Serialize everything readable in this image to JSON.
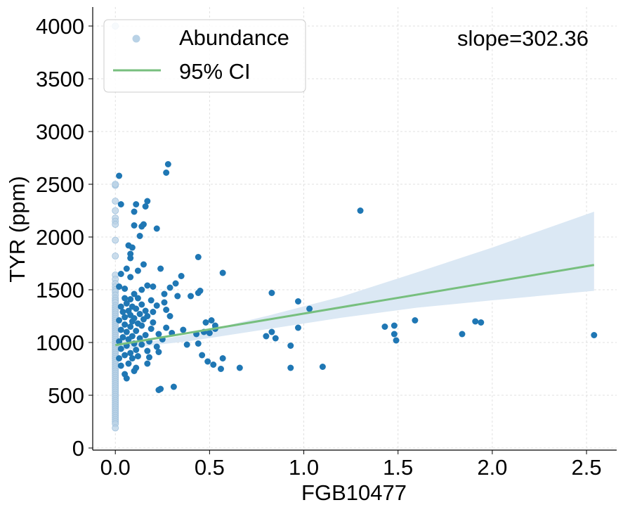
{
  "chart_data": {
    "type": "scatter",
    "xlabel": "FGB10477",
    "ylabel": "TYR (ppm)",
    "xlim": [
      -0.12,
      2.66
    ],
    "ylim": [
      -20,
      4180
    ],
    "x_ticks": [
      0.0,
      0.5,
      1.0,
      1.5,
      2.0,
      2.5
    ],
    "x_tick_labels": [
      "0.0",
      "0.5",
      "1.0",
      "1.5",
      "2.0",
      "2.5"
    ],
    "y_ticks": [
      0,
      500,
      1000,
      1500,
      2000,
      2500,
      3000,
      3500,
      4000
    ],
    "y_tick_labels": [
      "0",
      "500",
      "1000",
      "1500",
      "2000",
      "2500",
      "3000",
      "3500",
      "4000"
    ],
    "grid": true,
    "legend": {
      "position": "top-left",
      "entries": [
        {
          "label": "Abundance",
          "marker": "circle",
          "color": "#1f77b4"
        },
        {
          "label": "95% CI",
          "marker": "line",
          "color": "#77bf7e"
        }
      ]
    },
    "annotation": "slope=302.36",
    "colors": {
      "points": "#1f77b4",
      "points_zero": "#b9d2e6",
      "fit_line": "#77bf7e",
      "ci_band": "#dbe8f4"
    },
    "fit_line": {
      "x": [
        0.0,
        2.54
      ],
      "y": [
        975,
        1735
      ]
    },
    "ci_band": {
      "x": [
        0.0,
        0.1,
        0.2,
        0.4,
        0.8,
        1.2,
        1.6,
        2.0,
        2.54
      ],
      "lower": [
        910,
        945,
        975,
        1015,
        1125,
        1235,
        1330,
        1400,
        1490
      ],
      "upper": [
        1040,
        1020,
        1015,
        1080,
        1250,
        1435,
        1665,
        1900,
        2240
      ]
    },
    "zero_points": [
      4000,
      2490,
      2500,
      2340,
      2250,
      2180,
      2150,
      2120,
      1970,
      1820,
      1640,
      1600,
      1560,
      1530,
      1500,
      1480,
      1450,
      1420,
      1400,
      1380,
      1350,
      1330,
      1310,
      1290,
      1270,
      1250,
      1230,
      1210,
      1190,
      1170,
      1150,
      1130,
      1110,
      1090,
      1070,
      1050,
      1030,
      1010,
      990,
      970,
      950,
      930,
      910,
      890,
      870,
      850,
      830,
      810,
      790,
      770,
      750,
      730,
      710,
      690,
      670,
      650,
      630,
      610,
      590,
      570,
      550,
      530,
      510,
      490,
      470,
      450,
      430,
      410,
      390,
      370,
      350,
      330,
      310,
      290,
      270,
      250,
      230,
      190
    ],
    "points": [
      {
        "x": 0.02,
        "y": 2580
      },
      {
        "x": 0.03,
        "y": 2310
      },
      {
        "x": 0.28,
        "y": 2690
      },
      {
        "x": 0.27,
        "y": 2610
      },
      {
        "x": 0.17,
        "y": 2340
      },
      {
        "x": 0.11,
        "y": 2310
      },
      {
        "x": 0.16,
        "y": 2290
      },
      {
        "x": 0.1,
        "y": 2240
      },
      {
        "x": 0.1,
        "y": 2110
      },
      {
        "x": 0.14,
        "y": 2100
      },
      {
        "x": 0.15,
        "y": 2120
      },
      {
        "x": 0.22,
        "y": 2080
      },
      {
        "x": 0.13,
        "y": 2010
      },
      {
        "x": 0.07,
        "y": 1920
      },
      {
        "x": 0.09,
        "y": 1900
      },
      {
        "x": 0.08,
        "y": 1840
      },
      {
        "x": 0.08,
        "y": 1800
      },
      {
        "x": 0.44,
        "y": 1810
      },
      {
        "x": 0.15,
        "y": 1740
      },
      {
        "x": 0.06,
        "y": 1700
      },
      {
        "x": 0.12,
        "y": 1680
      },
      {
        "x": 0.24,
        "y": 1700
      },
      {
        "x": 0.57,
        "y": 1660
      },
      {
        "x": 0.35,
        "y": 1630
      },
      {
        "x": 0.03,
        "y": 1650
      },
      {
        "x": 0.08,
        "y": 1620
      },
      {
        "x": 0.32,
        "y": 1560
      },
      {
        "x": 0.29,
        "y": 1520
      },
      {
        "x": 0.2,
        "y": 1530
      },
      {
        "x": 0.17,
        "y": 1540
      },
      {
        "x": 0.45,
        "y": 1490
      },
      {
        "x": 0.44,
        "y": 1470
      },
      {
        "x": 0.4,
        "y": 1440
      },
      {
        "x": 0.33,
        "y": 1440
      },
      {
        "x": 0.26,
        "y": 1460
      },
      {
        "x": 0.14,
        "y": 1500
      },
      {
        "x": 0.05,
        "y": 1510
      },
      {
        "x": 0.02,
        "y": 1530
      },
      {
        "x": 0.1,
        "y": 1460
      },
      {
        "x": 0.12,
        "y": 1420
      },
      {
        "x": 0.05,
        "y": 1420
      },
      {
        "x": 0.08,
        "y": 1410
      },
      {
        "x": 0.19,
        "y": 1400
      },
      {
        "x": 0.26,
        "y": 1380
      },
      {
        "x": 0.06,
        "y": 1370
      },
      {
        "x": 0.03,
        "y": 1340
      },
      {
        "x": 0.09,
        "y": 1340
      },
      {
        "x": 0.14,
        "y": 1360
      },
      {
        "x": 0.22,
        "y": 1350
      },
      {
        "x": 0.11,
        "y": 1320
      },
      {
        "x": 0.16,
        "y": 1300
      },
      {
        "x": 0.07,
        "y": 1300
      },
      {
        "x": 0.04,
        "y": 1290
      },
      {
        "x": 0.2,
        "y": 1290
      },
      {
        "x": 0.27,
        "y": 1310
      },
      {
        "x": 0.13,
        "y": 1270
      },
      {
        "x": 0.08,
        "y": 1260
      },
      {
        "x": 0.17,
        "y": 1250
      },
      {
        "x": 0.29,
        "y": 1250
      },
      {
        "x": 0.05,
        "y": 1240
      },
      {
        "x": 0.1,
        "y": 1230
      },
      {
        "x": 0.15,
        "y": 1220
      },
      {
        "x": 0.02,
        "y": 1210
      },
      {
        "x": 0.09,
        "y": 1200
      },
      {
        "x": 0.2,
        "y": 1190
      },
      {
        "x": 0.12,
        "y": 1180
      },
      {
        "x": 0.05,
        "y": 1170
      },
      {
        "x": 0.14,
        "y": 1160
      },
      {
        "x": 0.08,
        "y": 1150
      },
      {
        "x": 0.27,
        "y": 1140
      },
      {
        "x": 0.36,
        "y": 1120
      },
      {
        "x": 0.19,
        "y": 1130
      },
      {
        "x": 0.03,
        "y": 1120
      },
      {
        "x": 0.11,
        "y": 1110
      },
      {
        "x": 0.06,
        "y": 1100
      },
      {
        "x": 0.3,
        "y": 1090
      },
      {
        "x": 0.23,
        "y": 1080
      },
      {
        "x": 0.16,
        "y": 1070
      },
      {
        "x": 0.43,
        "y": 1080
      },
      {
        "x": 0.47,
        "y": 1100
      },
      {
        "x": 0.5,
        "y": 1090
      },
      {
        "x": 0.53,
        "y": 1130
      },
      {
        "x": 0.53,
        "y": 1160
      },
      {
        "x": 0.51,
        "y": 1210
      },
      {
        "x": 0.48,
        "y": 1190
      },
      {
        "x": 0.09,
        "y": 1060
      },
      {
        "x": 0.04,
        "y": 1050
      },
      {
        "x": 0.13,
        "y": 1040
      },
      {
        "x": 0.07,
        "y": 1030
      },
      {
        "x": 0.25,
        "y": 1030
      },
      {
        "x": 0.18,
        "y": 1010
      },
      {
        "x": 0.02,
        "y": 1010
      },
      {
        "x": 0.1,
        "y": 990
      },
      {
        "x": 0.14,
        "y": 980
      },
      {
        "x": 0.06,
        "y": 970
      },
      {
        "x": 0.38,
        "y": 980
      },
      {
        "x": 0.44,
        "y": 990
      },
      {
        "x": 0.22,
        "y": 960
      },
      {
        "x": 0.03,
        "y": 940
      },
      {
        "x": 0.11,
        "y": 930
      },
      {
        "x": 0.17,
        "y": 920
      },
      {
        "x": 0.08,
        "y": 900
      },
      {
        "x": 0.23,
        "y": 910
      },
      {
        "x": 0.46,
        "y": 880
      },
      {
        "x": 0.05,
        "y": 880
      },
      {
        "x": 0.12,
        "y": 870
      },
      {
        "x": 0.18,
        "y": 860
      },
      {
        "x": 0.09,
        "y": 850
      },
      {
        "x": 0.02,
        "y": 850
      },
      {
        "x": 0.57,
        "y": 850
      },
      {
        "x": 0.49,
        "y": 820
      },
      {
        "x": 0.52,
        "y": 790
      },
      {
        "x": 0.17,
        "y": 800
      },
      {
        "x": 0.07,
        "y": 800
      },
      {
        "x": 0.11,
        "y": 760
      },
      {
        "x": 0.56,
        "y": 750
      },
      {
        "x": 0.66,
        "y": 760
      },
      {
        "x": 0.1,
        "y": 730
      },
      {
        "x": 0.05,
        "y": 700
      },
      {
        "x": 0.06,
        "y": 660
      },
      {
        "x": 0.03,
        "y": 780
      },
      {
        "x": 0.24,
        "y": 560
      },
      {
        "x": 0.23,
        "y": 550
      },
      {
        "x": 0.31,
        "y": 580
      },
      {
        "x": 0.8,
        "y": 1060
      },
      {
        "x": 0.83,
        "y": 1100
      },
      {
        "x": 0.85,
        "y": 1040
      },
      {
        "x": 0.83,
        "y": 1470
      },
      {
        "x": 0.93,
        "y": 970
      },
      {
        "x": 0.93,
        "y": 760
      },
      {
        "x": 0.97,
        "y": 1390
      },
      {
        "x": 0.97,
        "y": 1140
      },
      {
        "x": 1.03,
        "y": 1320
      },
      {
        "x": 1.1,
        "y": 770
      },
      {
        "x": 1.3,
        "y": 2250
      },
      {
        "x": 1.43,
        "y": 1150
      },
      {
        "x": 1.48,
        "y": 1160
      },
      {
        "x": 1.48,
        "y": 1080
      },
      {
        "x": 1.49,
        "y": 1020
      },
      {
        "x": 1.59,
        "y": 1210
      },
      {
        "x": 1.84,
        "y": 1080
      },
      {
        "x": 1.91,
        "y": 1200
      },
      {
        "x": 1.94,
        "y": 1190
      },
      {
        "x": 2.54,
        "y": 1070
      }
    ]
  }
}
